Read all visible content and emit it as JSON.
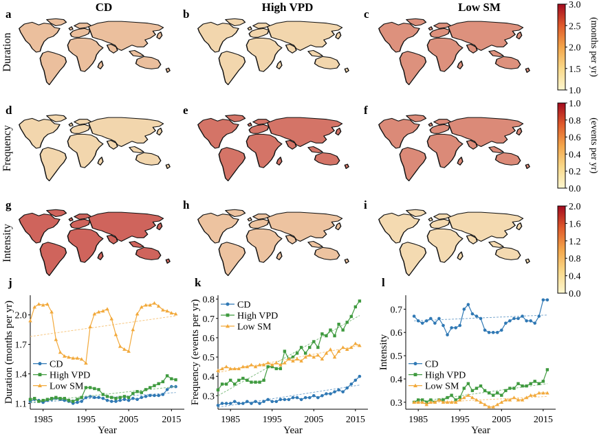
{
  "columns": [
    "CD",
    "High VPD",
    "Low SM"
  ],
  "rows": [
    "Duration",
    "Frequency",
    "Intensity"
  ],
  "map_panels": [
    {
      "letter": "a",
      "row": 0,
      "col": 0,
      "level": 0.22
    },
    {
      "letter": "b",
      "row": 0,
      "col": 1,
      "level": 0.12
    },
    {
      "letter": "c",
      "row": 0,
      "col": 2,
      "level": 0.42
    },
    {
      "letter": "d",
      "row": 1,
      "col": 0,
      "level": 0.12
    },
    {
      "letter": "e",
      "row": 1,
      "col": 1,
      "level": 0.55
    },
    {
      "letter": "f",
      "row": 1,
      "col": 2,
      "level": 0.45
    },
    {
      "letter": "g",
      "row": 2,
      "col": 0,
      "level": 0.62
    },
    {
      "letter": "h",
      "row": 2,
      "col": 1,
      "level": 0.2
    },
    {
      "letter": "i",
      "row": 2,
      "col": 2,
      "level": 0.1
    }
  ],
  "colorbars": [
    {
      "label": "(months per yr)",
      "ticks": [
        "1.0",
        "1.5",
        "2.0",
        "2.5",
        "3.0"
      ]
    },
    {
      "label": "(events per yr)",
      "ticks": [
        "0.0",
        "0.2",
        "0.4",
        "0.6",
        "0.8",
        "1.0"
      ]
    },
    {
      "label": "",
      "ticks": [
        "0.0",
        "0.4",
        "0.8",
        "1.2",
        "1.6",
        "2.0"
      ]
    }
  ],
  "colors": {
    "cd": "#2f78b4",
    "vpd": "#3f9a3f",
    "sm": "#f2a93b",
    "map_low": "#fbf1c1",
    "map_high": "#b40d1e",
    "coast": "#111111"
  },
  "chart_data": [
    {
      "letter": "j",
      "type": "line",
      "xlabel": "Year",
      "ylabel": "Duration (months per yr)",
      "xlim": [
        1982,
        2018
      ],
      "ylim": [
        1.04,
        2.2
      ],
      "xticks": [
        1985,
        1995,
        2005,
        2015
      ],
      "yticks": [
        1.1,
        1.4,
        1.7,
        2.0
      ],
      "ytick_labels": [
        "1.1",
        "1.4",
        "1.7",
        "2.0"
      ],
      "legend_position": "left-center",
      "years": [
        1982,
        1983,
        1984,
        1985,
        1986,
        1987,
        1988,
        1989,
        1990,
        1991,
        1992,
        1993,
        1994,
        1995,
        1996,
        1997,
        1998,
        1999,
        2000,
        2001,
        2002,
        2003,
        2004,
        2005,
        2006,
        2007,
        2008,
        2009,
        2010,
        2011,
        2012,
        2013,
        2014,
        2015,
        2016
      ],
      "series": [
        {
          "name": "CD",
          "color_key": "cd",
          "marker": "circle",
          "values": [
            1.12,
            1.14,
            1.13,
            1.11,
            1.13,
            1.14,
            1.15,
            1.14,
            1.13,
            1.12,
            1.1,
            1.11,
            1.12,
            1.16,
            1.17,
            1.16,
            1.16,
            1.15,
            1.13,
            1.12,
            1.12,
            1.13,
            1.14,
            1.13,
            1.15,
            1.14,
            1.16,
            1.17,
            1.18,
            1.18,
            1.18,
            1.19,
            1.24,
            1.27,
            1.27
          ],
          "trend": [
            1.105,
            1.21
          ]
        },
        {
          "name": "High VPD",
          "color_key": "vpd",
          "marker": "square",
          "values": [
            1.14,
            1.15,
            1.12,
            1.13,
            1.14,
            1.15,
            1.16,
            1.15,
            1.15,
            1.13,
            1.12,
            1.14,
            1.16,
            1.26,
            1.26,
            1.25,
            1.24,
            1.19,
            1.17,
            1.16,
            1.15,
            1.16,
            1.17,
            1.16,
            1.2,
            1.22,
            1.21,
            1.24,
            1.26,
            1.28,
            1.3,
            1.32,
            1.38,
            1.35,
            1.34
          ],
          "trend": [
            1.11,
            1.27
          ]
        },
        {
          "name": "Low SM",
          "color_key": "sm",
          "marker": "triangle",
          "values": [
            1.94,
            2.08,
            2.11,
            2.1,
            2.11,
            2.03,
            1.75,
            1.62,
            1.58,
            1.57,
            1.56,
            1.56,
            1.55,
            1.51,
            1.88,
            2.01,
            2.03,
            2.04,
            2.06,
            1.96,
            1.8,
            1.68,
            1.65,
            1.63,
            1.85,
            2.01,
            2.08,
            2.1,
            2.1,
            2.12,
            2.09,
            2.05,
            2.04,
            2.02,
            2.01
          ],
          "trend": [
            1.78,
            1.99
          ]
        }
      ]
    },
    {
      "letter": "k",
      "type": "line",
      "xlabel": "Year",
      "ylabel": "Frequency (events per yr)",
      "xlim": [
        1982,
        2018
      ],
      "ylim": [
        0.23,
        0.82
      ],
      "xticks": [
        1985,
        1995,
        2005,
        2015
      ],
      "yticks": [
        0.3,
        0.4,
        0.5,
        0.6,
        0.7,
        0.8
      ],
      "ytick_labels": [
        "0.3",
        "0.4",
        "0.5",
        "0.6",
        "0.7",
        "0.8"
      ],
      "legend_position": "top-left",
      "years": [
        1982,
        1983,
        1984,
        1985,
        1986,
        1987,
        1988,
        1989,
        1990,
        1991,
        1992,
        1993,
        1994,
        1995,
        1996,
        1997,
        1998,
        1999,
        2000,
        2001,
        2002,
        2003,
        2004,
        2005,
        2006,
        2007,
        2008,
        2009,
        2010,
        2011,
        2012,
        2013,
        2014,
        2015,
        2016
      ],
      "series": [
        {
          "name": "CD",
          "color_key": "cd",
          "marker": "circle",
          "values": [
            0.25,
            0.26,
            0.26,
            0.26,
            0.27,
            0.26,
            0.26,
            0.27,
            0.26,
            0.27,
            0.26,
            0.27,
            0.28,
            0.27,
            0.27,
            0.28,
            0.28,
            0.28,
            0.29,
            0.29,
            0.28,
            0.29,
            0.29,
            0.3,
            0.29,
            0.3,
            0.31,
            0.31,
            0.32,
            0.33,
            0.32,
            0.34,
            0.36,
            0.38,
            0.4
          ],
          "trend": [
            0.24,
            0.355
          ]
        },
        {
          "name": "High VPD",
          "color_key": "vpd",
          "marker": "square",
          "values": [
            0.33,
            0.36,
            0.36,
            0.38,
            0.36,
            0.38,
            0.39,
            0.38,
            0.37,
            0.37,
            0.37,
            0.38,
            0.45,
            0.45,
            0.44,
            0.44,
            0.53,
            0.49,
            0.5,
            0.52,
            0.55,
            0.52,
            0.55,
            0.58,
            0.55,
            0.62,
            0.61,
            0.64,
            0.61,
            0.67,
            0.64,
            0.68,
            0.71,
            0.76,
            0.79
          ],
          "trend": [
            0.3,
            0.715
          ]
        },
        {
          "name": "Low SM",
          "color_key": "sm",
          "marker": "triangle",
          "values": [
            0.43,
            0.44,
            0.45,
            0.44,
            0.44,
            0.44,
            0.45,
            0.45,
            0.46,
            0.45,
            0.46,
            0.46,
            0.47,
            0.46,
            0.47,
            0.46,
            0.47,
            0.49,
            0.48,
            0.49,
            0.48,
            0.5,
            0.51,
            0.5,
            0.51,
            0.49,
            0.52,
            0.54,
            0.5,
            0.53,
            0.55,
            0.54,
            0.55,
            0.57,
            0.56
          ],
          "trend": [
            0.42,
            0.56
          ]
        }
      ]
    },
    {
      "letter": "l",
      "type": "line",
      "xlabel": "Year",
      "ylabel": "Intensity",
      "xlim": [
        1982,
        2018
      ],
      "ylim": [
        0.27,
        0.76
      ],
      "xticks": [
        1985,
        1995,
        2005,
        2015
      ],
      "yticks": [
        0.3,
        0.4,
        0.5,
        0.6,
        0.7
      ],
      "ytick_labels": [
        "0.3",
        "0.4",
        "0.5",
        "0.6",
        "0.7"
      ],
      "legend_position": "left-center",
      "years": [
        1984,
        1985,
        1986,
        1987,
        1988,
        1989,
        1990,
        1991,
        1992,
        1993,
        1994,
        1995,
        1996,
        1997,
        1998,
        1999,
        2000,
        2001,
        2002,
        2003,
        2004,
        2005,
        2006,
        2007,
        2008,
        2009,
        2010,
        2011,
        2012,
        2013,
        2014,
        2015,
        2016
      ],
      "series": [
        {
          "name": "CD",
          "color_key": "cd",
          "marker": "circle",
          "values": [
            0.67,
            0.65,
            0.64,
            0.65,
            0.66,
            0.64,
            0.66,
            0.63,
            0.59,
            0.62,
            0.62,
            0.63,
            0.7,
            0.72,
            0.68,
            0.67,
            0.66,
            0.61,
            0.6,
            0.6,
            0.6,
            0.61,
            0.64,
            0.65,
            0.66,
            0.66,
            0.67,
            0.65,
            0.65,
            0.64,
            0.67,
            0.74,
            0.74
          ],
          "trend": [
            0.65,
            0.675
          ]
        },
        {
          "name": "High VPD",
          "color_key": "vpd",
          "marker": "square",
          "values": [
            0.3,
            0.31,
            0.31,
            0.3,
            0.31,
            0.3,
            0.31,
            0.31,
            0.32,
            0.33,
            0.31,
            0.32,
            0.36,
            0.38,
            0.35,
            0.36,
            0.37,
            0.35,
            0.34,
            0.33,
            0.34,
            0.33,
            0.35,
            0.36,
            0.36,
            0.38,
            0.37,
            0.37,
            0.38,
            0.39,
            0.38,
            0.39,
            0.44
          ],
          "trend": [
            0.3,
            0.38
          ]
        },
        {
          "name": "Low SM",
          "color_key": "sm",
          "marker": "triangle",
          "values": [
            0.3,
            0.3,
            0.3,
            0.29,
            0.3,
            0.3,
            0.31,
            0.3,
            0.3,
            0.3,
            0.3,
            0.31,
            0.32,
            0.33,
            0.32,
            0.31,
            0.3,
            0.29,
            0.28,
            0.28,
            0.29,
            0.3,
            0.31,
            0.31,
            0.32,
            0.31,
            0.31,
            0.32,
            0.33,
            0.33,
            0.34,
            0.34,
            0.34
          ],
          "trend": [
            0.295,
            0.325
          ]
        }
      ]
    }
  ]
}
